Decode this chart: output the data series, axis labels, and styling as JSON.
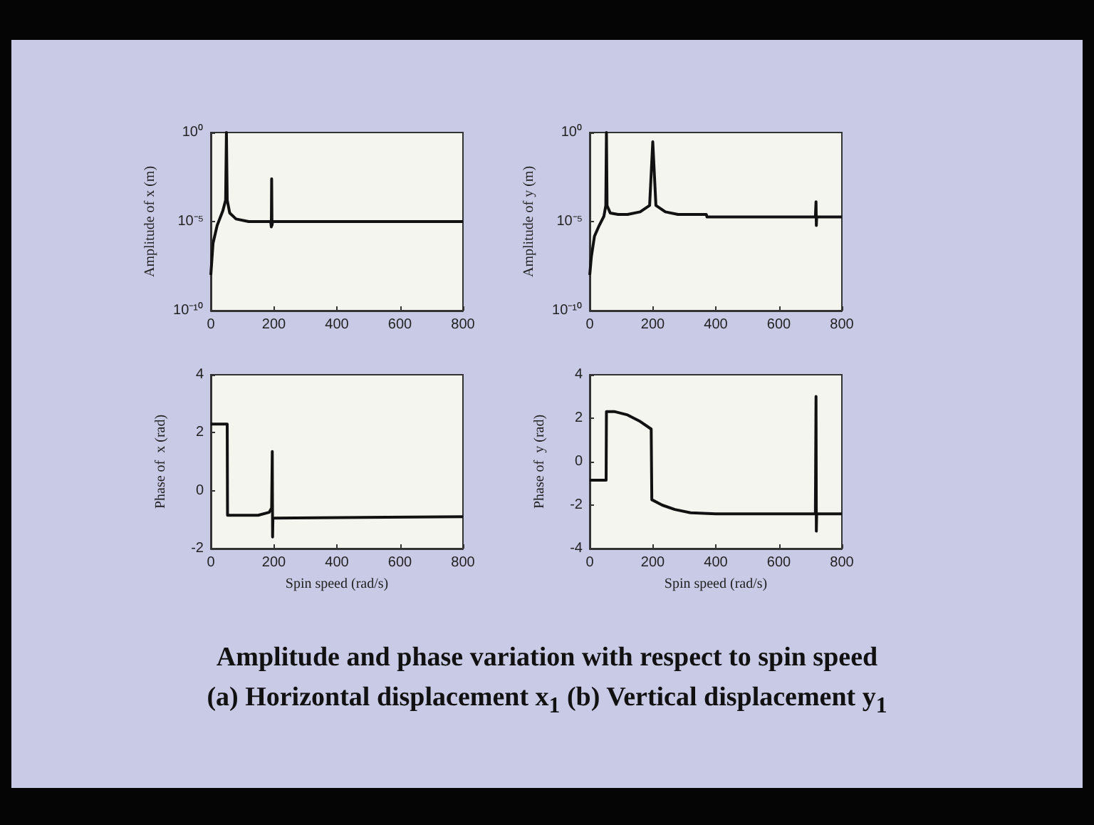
{
  "chart_data": [
    {
      "type": "line",
      "ylabel": "Amplitude of x (m)",
      "log": "y",
      "xlim": [
        0,
        800
      ],
      "xticks": [
        0,
        200,
        400,
        600,
        800
      ],
      "ylim": [
        1e-10,
        1
      ],
      "yticks": [
        {
          "value": 1e-10,
          "label": "10⁻¹⁰"
        },
        {
          "value": 1e-05,
          "label": "10⁻⁵"
        },
        {
          "value": 1,
          "label": "10⁰"
        }
      ],
      "series": [
        {
          "color": "#111111",
          "x": [
            0,
            7,
            20,
            38,
            47,
            49.5,
            52,
            60,
            80,
            120,
            190,
            192,
            193,
            194,
            196,
            800
          ],
          "values": [
            1e-08,
            6e-07,
            6e-06,
            4e-05,
            0.00016,
            1,
            0.00016,
            3e-05,
            1.4e-05,
            1e-05,
            1e-05,
            5e-06,
            0.0025,
            6e-06,
            1e-05,
            1e-05
          ]
        }
      ],
      "annotations": [
        "Amplitude and phase variation with respect to spin speed",
        "(a) Horizontal displacement x$_{1}$ (b) Vertical displacement y$_{1}$"
      ]
    },
    {
      "type": "line",
      "ylabel": "Amplitude of y (m)",
      "log": "y",
      "xlim": [
        0,
        800
      ],
      "xticks": [
        0,
        200,
        400,
        600,
        800
      ],
      "ylim": [
        1e-10,
        1
      ],
      "yticks": [
        {
          "value": 1e-10,
          "label": "10⁻¹⁰"
        },
        {
          "value": 1e-05,
          "label": "10⁻⁵"
        },
        {
          "value": 1,
          "label": "10⁰"
        }
      ],
      "series": [
        {
          "color": "#111111",
          "x": [
            0,
            5,
            15,
            30,
            45,
            51,
            53,
            55,
            65,
            90,
            120,
            160,
            190,
            200,
            210,
            240,
            280,
            370,
            372,
            716,
            718,
            719,
            720,
            800
          ],
          "values": [
            1e-08,
            1e-07,
            1.5e-06,
            6e-06,
            2e-05,
            8e-05,
            1,
            8e-05,
            3e-05,
            2.5e-05,
            2.5e-05,
            3.5e-05,
            8e-05,
            0.3,
            8e-05,
            3.5e-05,
            2.5e-05,
            2.5e-05,
            1.8e-05,
            1.8e-05,
            0.00013,
            6e-06,
            1.8e-05,
            1.8e-05
          ]
        }
      ]
    },
    {
      "type": "line",
      "xlabel": "Spin speed (rad/s)",
      "ylabel": "Phase of  x (rad)",
      "xlim": [
        0,
        800
      ],
      "xticks": [
        0,
        200,
        400,
        600,
        800
      ],
      "ylim": [
        -2,
        4
      ],
      "yticks": [
        -2,
        0,
        2,
        4
      ],
      "series": [
        {
          "color": "#111111",
          "x": [
            0,
            52,
            53,
            150,
            185,
            193,
            195,
            196,
            197,
            800
          ],
          "values": [
            2.3,
            2.3,
            -0.85,
            -0.85,
            -0.75,
            -0.6,
            1.35,
            -1.6,
            -0.95,
            -0.9
          ]
        }
      ]
    },
    {
      "type": "line",
      "xlabel": "Spin speed (rad/s)",
      "ylabel": "Phase of  y (rad)",
      "xlim": [
        0,
        800
      ],
      "xticks": [
        0,
        200,
        400,
        600,
        800
      ],
      "ylim": [
        -4,
        4
      ],
      "yticks": [
        -4,
        -2,
        0,
        2,
        4
      ],
      "series": [
        {
          "color": "#111111",
          "x": [
            0,
            52,
            53,
            80,
            120,
            160,
            195,
            197,
            230,
            270,
            320,
            400,
            716,
            718,
            719,
            720,
            800
          ],
          "values": [
            -0.85,
            -0.85,
            2.3,
            2.3,
            2.15,
            1.85,
            1.5,
            -1.75,
            -2.0,
            -2.2,
            -2.35,
            -2.4,
            -2.4,
            3.0,
            -3.2,
            -2.4,
            -2.4
          ]
        }
      ]
    }
  ]
}
